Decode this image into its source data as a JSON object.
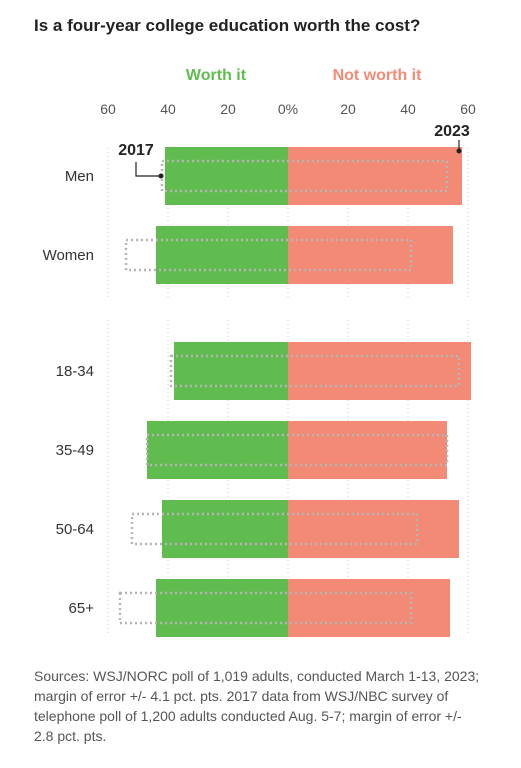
{
  "title": "Is a four-year college education worth the cost?",
  "legend": [
    {
      "label": "Worth it",
      "color": "#61bc50"
    },
    {
      "label": "Not worth it",
      "color": "#f28a75"
    }
  ],
  "annotations": {
    "year_2017": "2017",
    "year_2023": "2023"
  },
  "sources": "Sources: WSJ/NORC poll of 1,019 adults, conducted March 1-13, 2023; margin of error +/- 4.1 pct. pts. 2017 data from WSJ/NBC survey of telephone poll of 1,200 adults conducted Aug. 5-7; margin of error +/- 2.8 pct. pts.",
  "chart_data": {
    "type": "bar",
    "orientation": "horizontal-diverging",
    "x_ticks": [
      "60",
      "40",
      "20",
      "0%",
      "20",
      "40",
      "60"
    ],
    "xlim": [
      -60,
      60
    ],
    "groups": [
      {
        "categories": [
          "Men",
          "Women"
        ]
      },
      {
        "categories": [
          "18-34",
          "35-49",
          "50-64",
          "65+"
        ]
      }
    ],
    "categories": [
      "Men",
      "Women",
      "18-34",
      "35-49",
      "50-64",
      "65+"
    ],
    "series": [
      {
        "name": "Worth it",
        "year": "2023",
        "values": [
          41,
          44,
          38,
          47,
          42,
          44
        ]
      },
      {
        "name": "Not worth it",
        "year": "2023",
        "values": [
          58,
          55,
          61,
          53,
          57,
          54
        ]
      },
      {
        "name": "Worth it",
        "year": "2017",
        "values": [
          42,
          54,
          39,
          47,
          52,
          56
        ]
      },
      {
        "name": "Not worth it",
        "year": "2017",
        "values": [
          53,
          41,
          57,
          53,
          43,
          41
        ]
      }
    ],
    "colors": {
      "worth": "#61bc50",
      "not_worth": "#f28a75",
      "outline_2017": "#b5b5b5",
      "grid": "#cfcfcf"
    }
  }
}
